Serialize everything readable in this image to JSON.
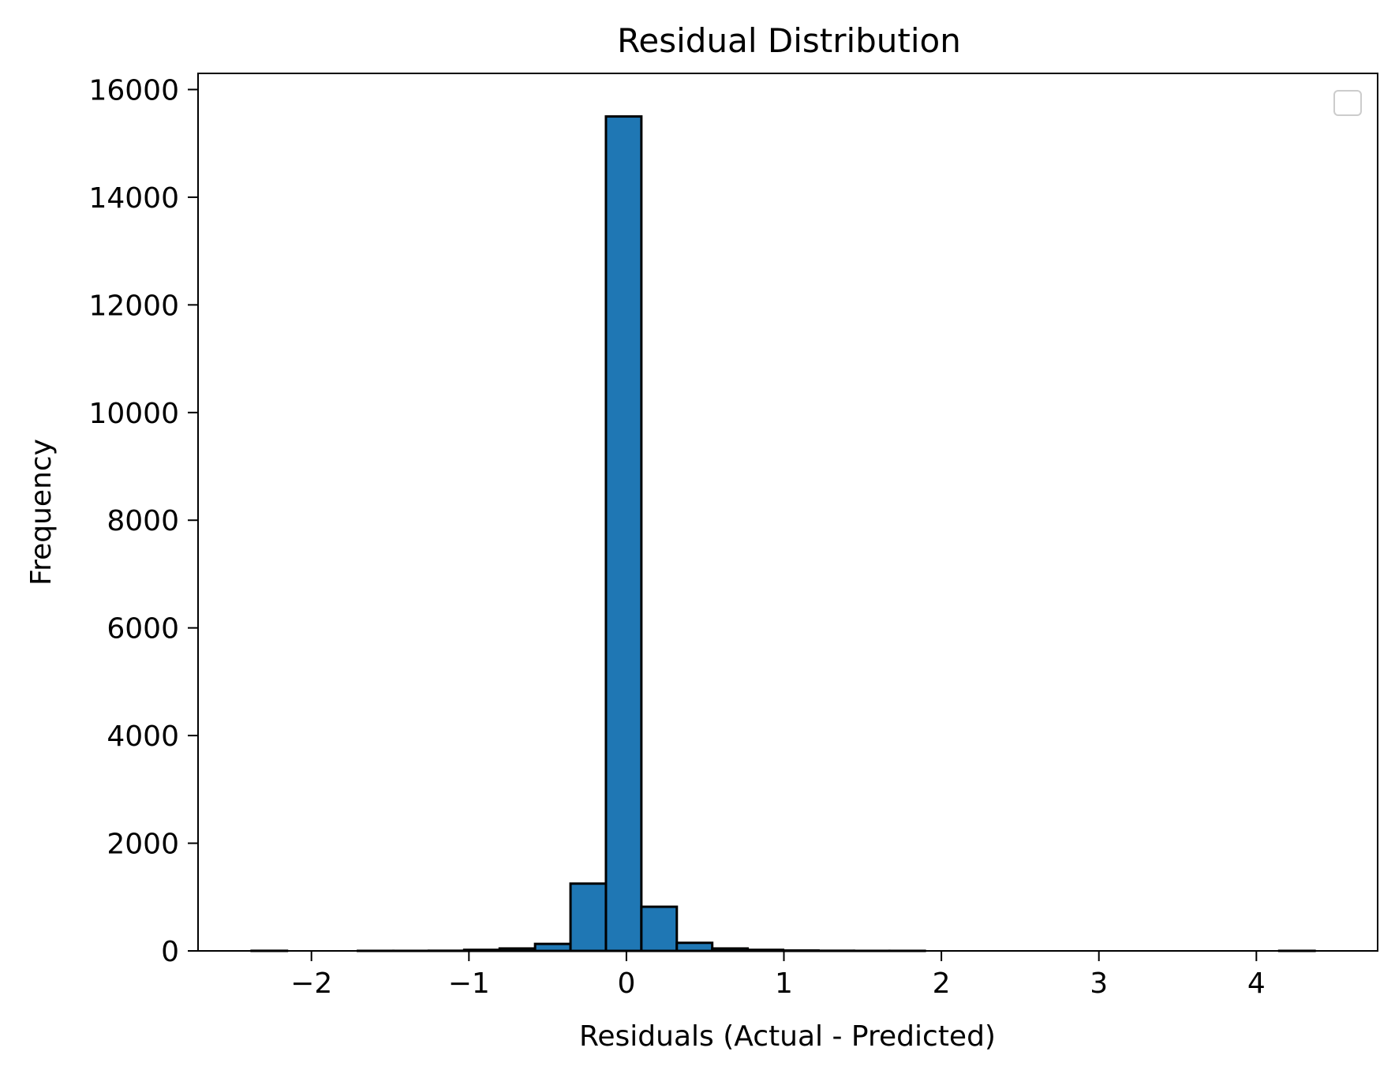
{
  "chart_data": {
    "type": "bar",
    "title": "Residual Distribution",
    "xlabel": "Residuals (Actual - Predicted)",
    "ylabel": "Frequency",
    "xlim": [
      -2.72,
      4.77
    ],
    "ylim": [
      0,
      16300
    ],
    "xticks": [
      -2,
      -1,
      0,
      1,
      2,
      3,
      4
    ],
    "xtick_labels": [
      "−2",
      "−1",
      "0",
      "1",
      "2",
      "3",
      "4"
    ],
    "yticks": [
      0,
      2000,
      4000,
      6000,
      8000,
      10000,
      12000,
      14000,
      16000
    ],
    "ytick_labels": [
      "0",
      "2000",
      "4000",
      "6000",
      "8000",
      "10000",
      "12000",
      "14000",
      "16000"
    ],
    "bin_edges": [
      -2.38,
      -2.155,
      -1.93,
      -1.705,
      -1.48,
      -1.255,
      -1.03,
      -0.805,
      -0.58,
      -0.355,
      -0.13,
      0.095,
      0.32,
      0.545,
      0.77,
      0.995,
      1.22,
      1.445,
      1.67,
      1.895,
      2.12,
      2.345,
      2.57,
      2.795,
      3.02,
      3.245,
      3.47,
      3.695,
      3.92,
      4.145,
      4.37
    ],
    "values": [
      2,
      0,
      0,
      1,
      1,
      3,
      20,
      45,
      130,
      1250,
      15500,
      820,
      150,
      45,
      20,
      8,
      3,
      1,
      1,
      0,
      0,
      0,
      0,
      0,
      0,
      0,
      0,
      0,
      0,
      1
    ],
    "grid": false,
    "legend": "top-right (empty)",
    "colors": {
      "bar_fill": "#1f77b4",
      "bar_edge": "#000000",
      "legend_frame": "#cccccc"
    }
  }
}
